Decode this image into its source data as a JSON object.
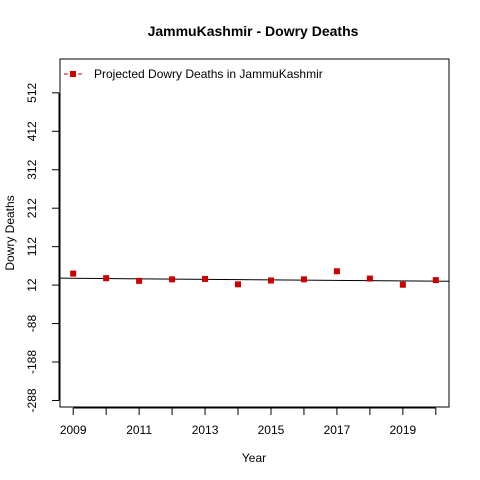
{
  "chart_data": {
    "type": "scatter",
    "title": "JammuKashmir  -  Dowry Deaths",
    "xlabel": "Year",
    "ylabel": "Dowry Deaths",
    "xlim": [
      2008.6,
      2020.4
    ],
    "ylim": [
      -305,
      600
    ],
    "x_ticks": [
      2009,
      2010,
      2011,
      2012,
      2013,
      2014,
      2015,
      2016,
      2017,
      2018,
      2019,
      2020
    ],
    "x_tick_labels": [
      "2009",
      "2011",
      "2013",
      "2015",
      "2017",
      "2019"
    ],
    "x_tick_label_values": [
      2009,
      2011,
      2013,
      2015,
      2017,
      2019
    ],
    "y_ticks": [
      -288,
      -188,
      -88,
      12,
      112,
      212,
      312,
      412,
      512
    ],
    "y_tick_labels": [
      "-288",
      "-188",
      "-88",
      "12",
      "112",
      "212",
      "312",
      "412",
      "512"
    ],
    "grid": false,
    "legend_position": "top-left",
    "series": [
      {
        "name": "Projected  Dowry Deaths  in  JammuKashmir",
        "color": "#cc0000",
        "marker": "square",
        "x": [
          2009,
          2010,
          2011,
          2012,
          2013,
          2014,
          2015,
          2016,
          2017,
          2018,
          2019,
          2020
        ],
        "y": [
          42,
          30,
          23,
          27,
          28,
          14,
          24,
          27,
          48,
          29,
          13,
          25
        ]
      }
    ],
    "trend_line": {
      "color": "#000000",
      "x": [
        2008.6,
        2020.4
      ],
      "y": [
        30,
        22
      ]
    }
  }
}
